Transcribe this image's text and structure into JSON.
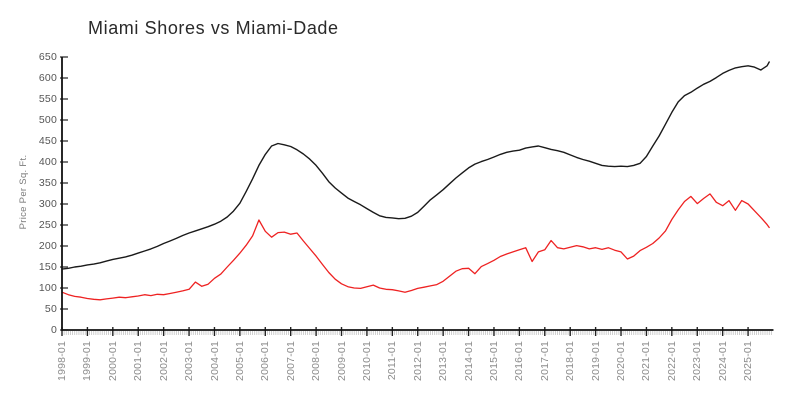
{
  "chart_data": {
    "type": "line",
    "title": "Miami Shores vs Miami-Dade",
    "xlabel": "",
    "ylabel": "Price Per Sq. Ft.",
    "ylim": [
      0,
      650
    ],
    "y_ticks": [
      0,
      50,
      100,
      150,
      200,
      250,
      300,
      350,
      400,
      450,
      500,
      550,
      600,
      650
    ],
    "x_tick_labels": [
      "1998-01",
      "1999-01",
      "2000-01",
      "2001-01",
      "2002-01",
      "2003-01",
      "2004-01",
      "2005-01",
      "2006-01",
      "2007-01",
      "2008-01",
      "2009-01",
      "2010-01",
      "2011-01",
      "2012-01",
      "2013-01",
      "2014-01",
      "2015-01",
      "2016-01",
      "2017-01",
      "2018-01",
      "2019-01",
      "2020-01",
      "2021-01",
      "2022-01",
      "2023-01",
      "2024-01",
      "2025-01"
    ],
    "x_range": [
      "1998-01",
      "2025-12"
    ],
    "grid": false,
    "legend_position": "none",
    "axis_color": "#111111",
    "minor_tick_color": "#c3c3c3",
    "x": [
      "1998-01",
      "1998-04",
      "1998-07",
      "1998-10",
      "1999-01",
      "1999-04",
      "1999-07",
      "1999-10",
      "2000-01",
      "2000-04",
      "2000-07",
      "2000-10",
      "2001-01",
      "2001-04",
      "2001-07",
      "2001-10",
      "2002-01",
      "2002-04",
      "2002-07",
      "2002-10",
      "2003-01",
      "2003-04",
      "2003-07",
      "2003-10",
      "2004-01",
      "2004-04",
      "2004-07",
      "2004-10",
      "2005-01",
      "2005-04",
      "2005-07",
      "2005-10",
      "2006-01",
      "2006-04",
      "2006-07",
      "2006-10",
      "2007-01",
      "2007-04",
      "2007-07",
      "2007-10",
      "2008-01",
      "2008-04",
      "2008-07",
      "2008-10",
      "2009-01",
      "2009-04",
      "2009-07",
      "2009-10",
      "2010-01",
      "2010-04",
      "2010-07",
      "2010-10",
      "2011-01",
      "2011-04",
      "2011-07",
      "2011-10",
      "2012-01",
      "2012-04",
      "2012-07",
      "2012-10",
      "2013-01",
      "2013-04",
      "2013-07",
      "2013-10",
      "2014-01",
      "2014-04",
      "2014-07",
      "2014-10",
      "2015-01",
      "2015-04",
      "2015-07",
      "2015-10",
      "2016-01",
      "2016-04",
      "2016-07",
      "2016-10",
      "2017-01",
      "2017-04",
      "2017-07",
      "2017-10",
      "2018-01",
      "2018-04",
      "2018-07",
      "2018-10",
      "2019-01",
      "2019-04",
      "2019-07",
      "2019-10",
      "2020-01",
      "2020-04",
      "2020-07",
      "2020-10",
      "2021-01",
      "2021-04",
      "2021-07",
      "2021-10",
      "2022-01",
      "2022-04",
      "2022-07",
      "2022-10",
      "2023-01",
      "2023-04",
      "2023-07",
      "2023-10",
      "2024-01",
      "2024-04",
      "2024-07",
      "2024-10",
      "2025-01",
      "2025-04",
      "2025-07",
      "2025-10",
      "2025-11"
    ],
    "series": [
      {
        "name": "Miami Shores",
        "color": "#1a1a1a",
        "values": [
          145,
          147,
          150,
          152,
          155,
          157,
          160,
          164,
          168,
          171,
          174,
          178,
          183,
          188,
          193,
          199,
          206,
          212,
          218,
          225,
          231,
          236,
          241,
          246,
          252,
          259,
          269,
          283,
          302,
          330,
          360,
          392,
          418,
          438,
          444,
          441,
          437,
          429,
          419,
          407,
          392,
          373,
          353,
          338,
          326,
          314,
          306,
          298,
          289,
          280,
          272,
          268,
          267,
          265,
          266,
          271,
          280,
          295,
          310,
          322,
          334,
          348,
          362,
          374,
          386,
          395,
          401,
          406,
          412,
          418,
          423,
          426,
          428,
          433,
          436,
          438,
          434,
          430,
          427,
          423,
          417,
          411,
          406,
          402,
          397,
          392,
          390,
          389,
          390,
          389,
          392,
          397,
          413,
          438,
          462,
          490,
          518,
          543,
          558,
          566,
          576,
          585,
          592,
          601,
          611,
          618,
          624,
          627,
          629,
          626,
          619,
          629,
          638
        ]
      },
      {
        "name": "Miami-Dade",
        "color": "#ee2222",
        "values": [
          90,
          84,
          80,
          78,
          75,
          73,
          72,
          74,
          76,
          78,
          77,
          79,
          81,
          84,
          82,
          85,
          84,
          87,
          90,
          93,
          97,
          114,
          104,
          109,
          123,
          133,
          150,
          166,
          183,
          202,
          224,
          262,
          235,
          221,
          232,
          233,
          228,
          231,
          212,
          194,
          176,
          156,
          137,
          121,
          110,
          103,
          100,
          99,
          103,
          107,
          100,
          97,
          96,
          93,
          90,
          94,
          99,
          102,
          105,
          108,
          116,
          128,
          140,
          146,
          147,
          134,
          151,
          158,
          166,
          175,
          181,
          186,
          191,
          196,
          163,
          186,
          191,
          213,
          196,
          193,
          197,
          201,
          198,
          193,
          196,
          192,
          196,
          190,
          186,
          169,
          176,
          189,
          197,
          206,
          219,
          236,
          263,
          286,
          306,
          318,
          301,
          313,
          324,
          304,
          296,
          308,
          285,
          308,
          300,
          284,
          268,
          251,
          244
        ]
      }
    ]
  }
}
